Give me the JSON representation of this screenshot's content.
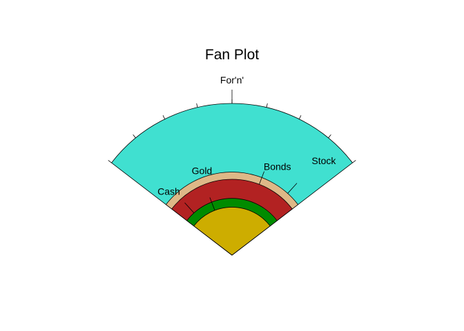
{
  "chart_data": {
    "type": "fan",
    "title": "Fan Plot",
    "categories": [
      "Cash",
      "Gold",
      "For'n'",
      "Bonds",
      "Stock"
    ],
    "values": [
      0.14,
      0.1,
      1.0,
      0.25,
      0.3
    ],
    "colors": [
      "#008B00",
      "#CDAD00",
      "#40E0D0",
      "#B22222",
      "#DEB887"
    ],
    "angular_span_degrees": 105,
    "legend": "labels on outer arc"
  }
}
